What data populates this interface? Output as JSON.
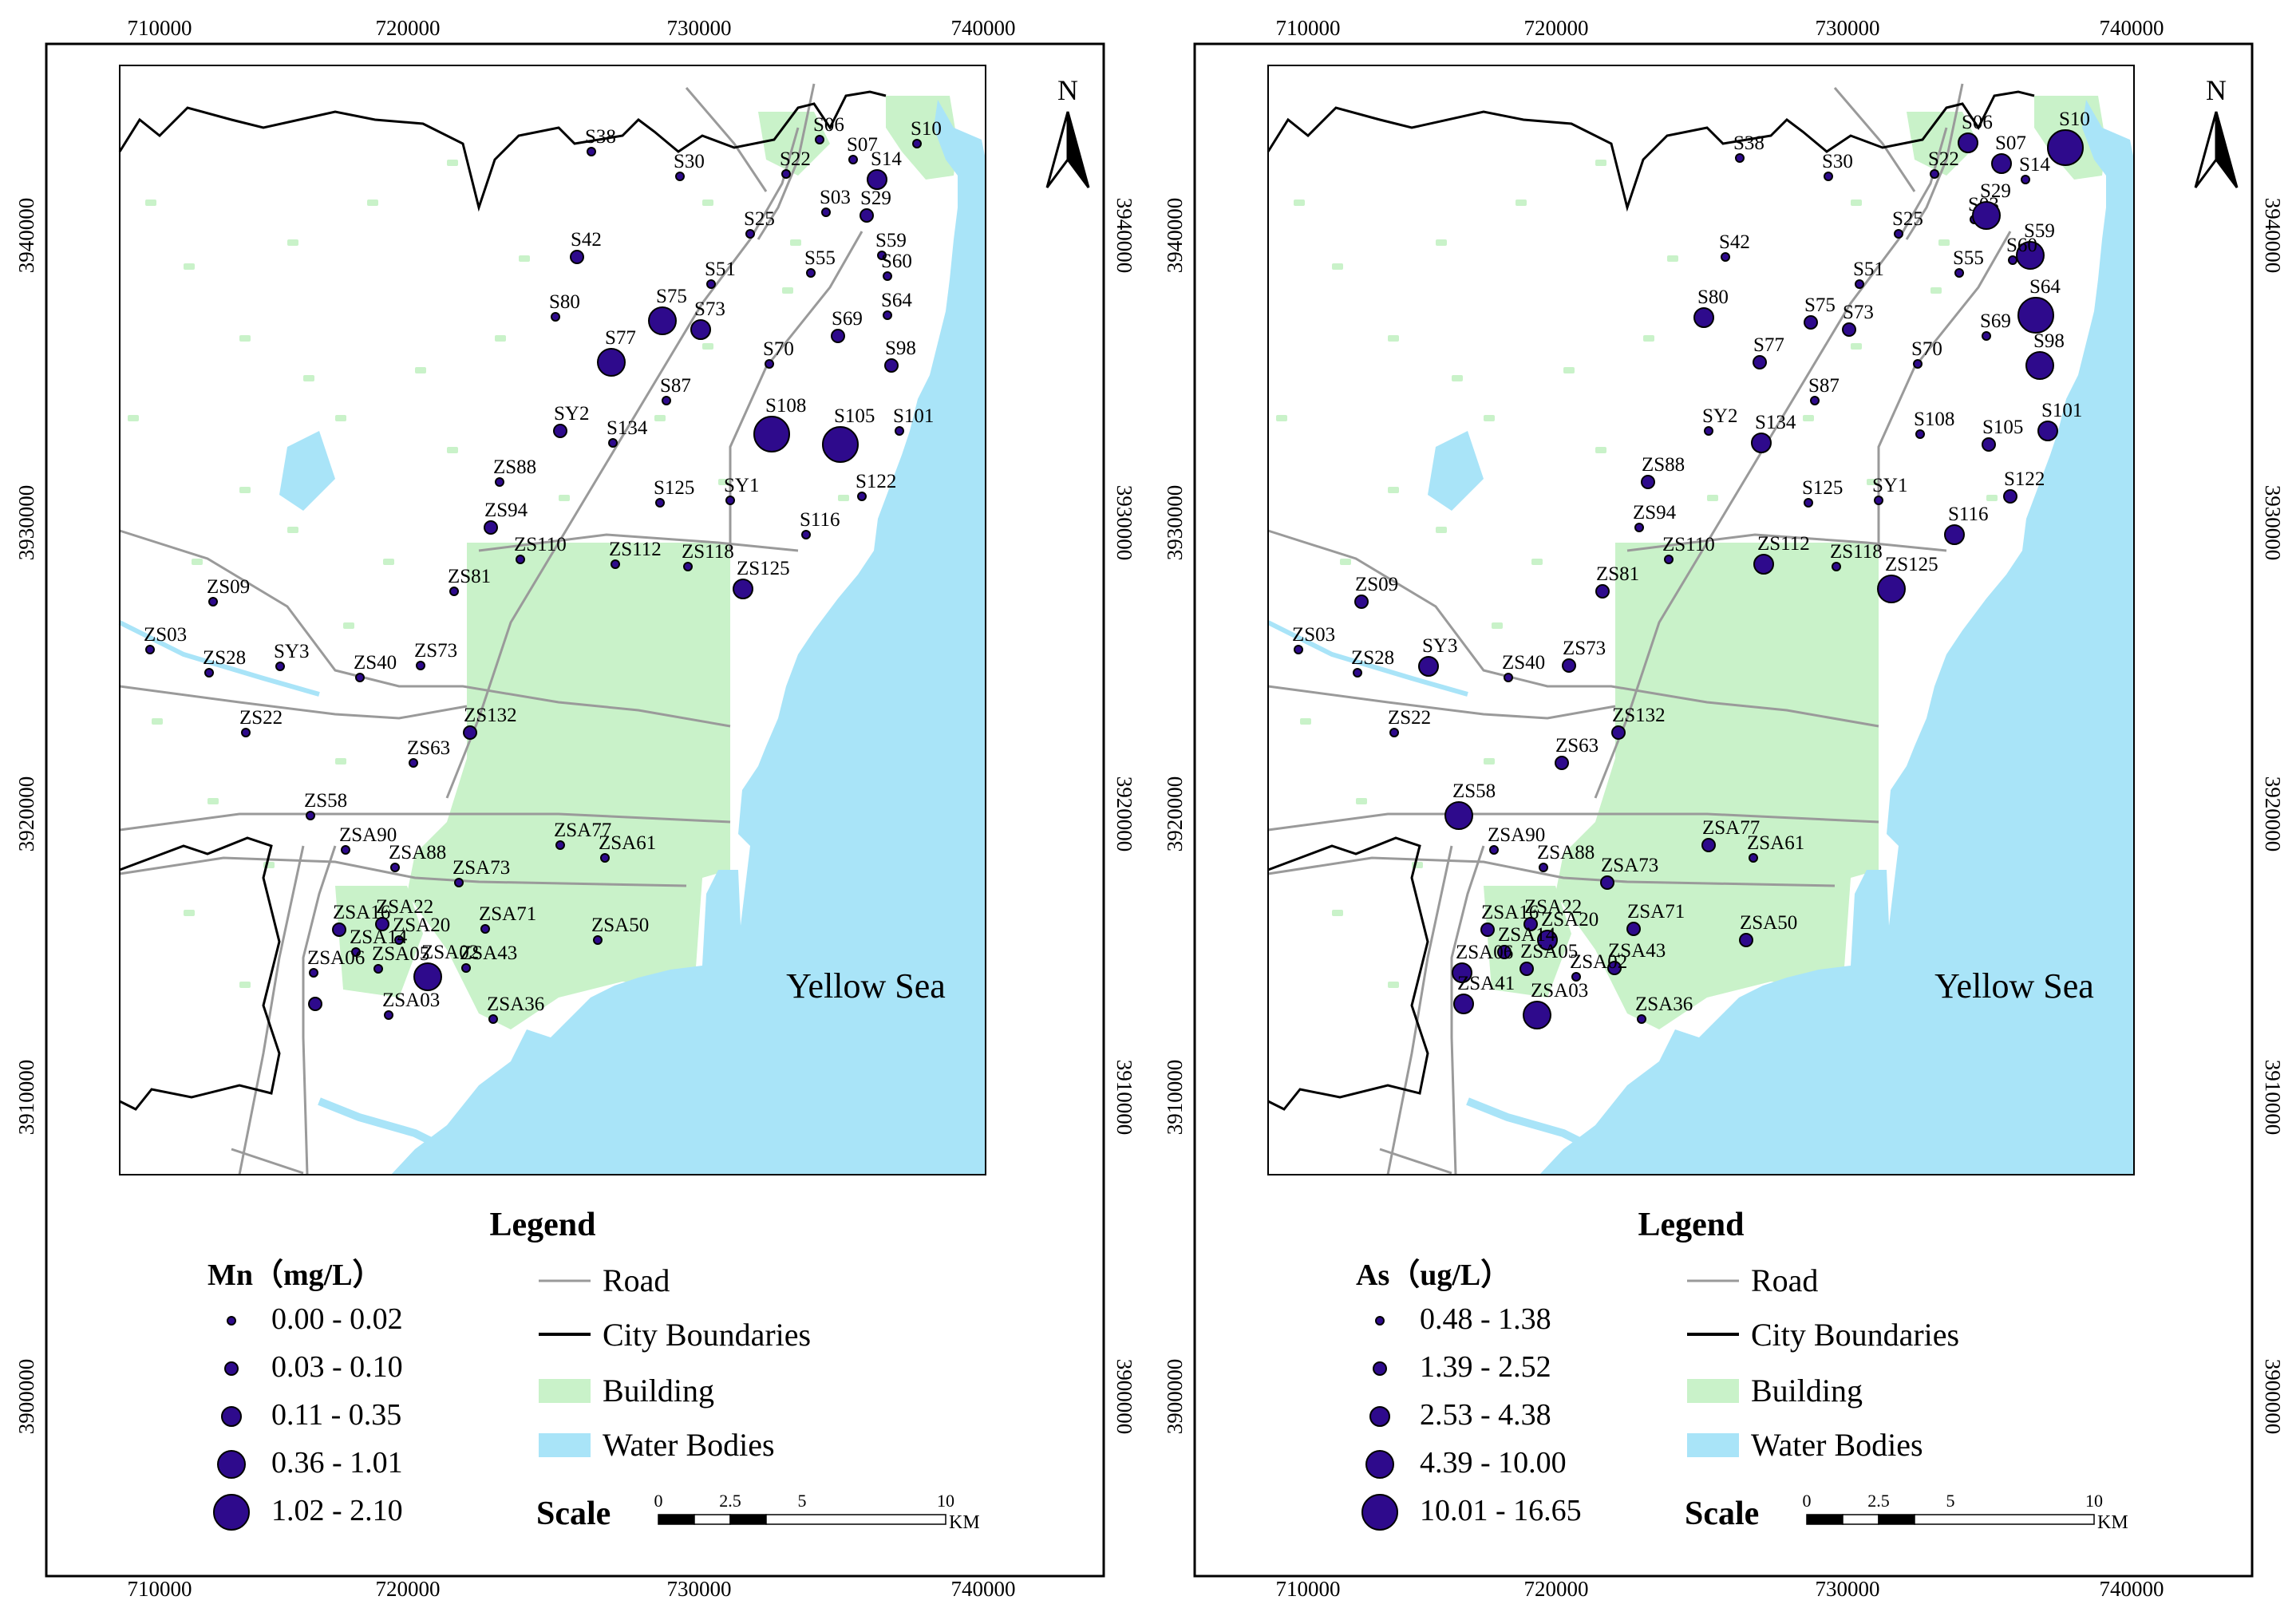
{
  "colors": {
    "land": "#ffffff",
    "water": "#a9e4f8",
    "building": "#c9f2c9",
    "road": "#9a9a9a",
    "boundary": "#000000",
    "marker_fill": "#2e0a8c",
    "marker_stroke": "#000000"
  },
  "axes": {
    "x_ticks": [
      "710000",
      "720000",
      "730000",
      "740000"
    ],
    "y_ticks": [
      "3910000",
      "3920000",
      "3930000",
      "3940000"
    ],
    "y_ticks_outer": [
      "3900000",
      "3910000",
      "3920000",
      "3930000",
      "3940000"
    ]
  },
  "sea_label": "Yellow Sea",
  "north_label": "N",
  "legend": {
    "title": "Legend",
    "road": "Road",
    "city_boundaries": "City Boundaries",
    "building": "Building",
    "water_bodies": "Water Bodies",
    "scale_title": "Scale",
    "scale_ticks": [
      "0",
      "2.5",
      "5",
      "10"
    ],
    "scale_unit": "KM"
  },
  "maps": [
    {
      "id": "mn",
      "variable_title": "Mn（mg/L）",
      "classes": [
        "0.00 - 0.02",
        "0.03 - 0.10",
        "0.11 - 0.35",
        "0.36 - 1.01",
        "1.02 - 2.10"
      ],
      "sites": [
        [
          "S38",
          741,
          190,
          0
        ],
        [
          "S30",
          852,
          221,
          0
        ],
        [
          "S22",
          985,
          218,
          0
        ],
        [
          "S06",
          1027,
          175,
          0
        ],
        [
          "S07",
          1069,
          200,
          0
        ],
        [
          "S10",
          1149,
          180,
          0
        ],
        [
          "S14",
          1099,
          225,
          2
        ],
        [
          "S03",
          1035,
          266,
          0
        ],
        [
          "S29",
          1086,
          270,
          1
        ],
        [
          "S25",
          940,
          293,
          0
        ],
        [
          "S42",
          723,
          322,
          1
        ],
        [
          "S55",
          1016,
          342,
          0
        ],
        [
          "S59",
          1105,
          320,
          0
        ],
        [
          "S60",
          1112,
          346,
          0
        ],
        [
          "S51",
          891,
          356,
          0
        ],
        [
          "S80",
          696,
          397,
          0
        ],
        [
          "S75",
          830,
          402,
          3
        ],
        [
          "S73",
          878,
          413,
          2
        ],
        [
          "S64",
          1112,
          395,
          0
        ],
        [
          "S69",
          1050,
          421,
          1
        ],
        [
          "S77",
          766,
          454,
          3
        ],
        [
          "S70",
          964,
          456,
          0
        ],
        [
          "S98",
          1117,
          458,
          1
        ],
        [
          "S87",
          835,
          502,
          0
        ],
        [
          "SY2",
          702,
          540,
          1
        ],
        [
          "S108",
          967,
          544,
          4
        ],
        [
          "S105",
          1053,
          557,
          4
        ],
        [
          "S101",
          1127,
          540,
          0
        ],
        [
          "S134",
          768,
          555,
          0
        ],
        [
          "ZS88",
          626,
          604,
          0
        ],
        [
          "S122",
          1080,
          622,
          0
        ],
        [
          "S125",
          827,
          630,
          0
        ],
        [
          "SY1",
          915,
          627,
          0
        ],
        [
          "ZS94",
          615,
          661,
          1
        ],
        [
          "S116",
          1010,
          670,
          0
        ],
        [
          "ZS110",
          652,
          701,
          0
        ],
        [
          "ZS112",
          771,
          707,
          0
        ],
        [
          "ZS118",
          862,
          710,
          0
        ],
        [
          "ZS81",
          569,
          741,
          0
        ],
        [
          "ZS125",
          931,
          738,
          2
        ],
        [
          "ZS09",
          267,
          754,
          0
        ],
        [
          "ZS03",
          188,
          814,
          0
        ],
        [
          "ZS28",
          262,
          843,
          0
        ],
        [
          "SY3",
          351,
          835,
          0
        ],
        [
          "ZS40",
          451,
          849,
          0
        ],
        [
          "ZS73",
          527,
          834,
          0
        ],
        [
          "ZS22",
          308,
          918,
          0
        ],
        [
          "ZS132",
          589,
          918,
          1
        ],
        [
          "ZS63",
          518,
          956,
          0
        ],
        [
          "ZS58",
          389,
          1022,
          0
        ],
        [
          "ZSA90",
          433,
          1065,
          0
        ],
        [
          "ZSA77",
          702,
          1059,
          0
        ],
        [
          "ZSA61",
          758,
          1075,
          0
        ],
        [
          "ZSA88",
          495,
          1087,
          0
        ],
        [
          "ZSA73",
          575,
          1106,
          0
        ],
        [
          "ZSA16",
          425,
          1165,
          1
        ],
        [
          "ZSA22",
          479,
          1158,
          1
        ],
        [
          "ZSA20",
          500,
          1178,
          0
        ],
        [
          "ZSA71",
          608,
          1164,
          0
        ],
        [
          "ZSA50",
          749,
          1178,
          0
        ],
        [
          "ZSA14",
          446,
          1193,
          0
        ],
        [
          "ZSA43",
          584,
          1213,
          0
        ],
        [
          "ZSA06",
          393,
          1219,
          0
        ],
        [
          "ZSA05",
          474,
          1214,
          0
        ],
        [
          "ZSA02",
          536,
          1224,
          3
        ],
        [
          "ZSA03",
          487,
          1272,
          0
        ],
        [
          "ZSA36",
          618,
          1277,
          0
        ],
        [
          "ZSA41",
          395,
          1258,
          1
        ]
      ],
      "labels_skip": [
        "ZSA41"
      ]
    },
    {
      "id": "as",
      "variable_title": "As（ug/L）",
      "classes": [
        "0.48 - 1.38",
        "1.39 - 2.52",
        "2.53 - 4.38",
        "4.39 - 10.00",
        "10.01 - 16.65"
      ],
      "sites": [
        [
          "S38",
          741,
          198,
          0
        ],
        [
          "S30",
          852,
          221,
          0
        ],
        [
          "S22",
          985,
          218,
          0
        ],
        [
          "S06",
          1027,
          179,
          2
        ],
        [
          "S07",
          1069,
          205,
          2
        ],
        [
          "S10",
          1149,
          185,
          4
        ],
        [
          "S14",
          1099,
          225,
          0
        ],
        [
          "S03",
          1035,
          275,
          0
        ],
        [
          "S29",
          1050,
          270,
          3
        ],
        [
          "S25",
          940,
          293,
          0
        ],
        [
          "S42",
          723,
          322,
          0
        ],
        [
          "S55",
          1016,
          342,
          0
        ],
        [
          "S59",
          1105,
          320,
          3
        ],
        [
          "S60",
          1083,
          326,
          0
        ],
        [
          "S64",
          1112,
          395,
          4
        ],
        [
          "S51",
          891,
          356,
          0
        ],
        [
          "S80",
          696,
          398,
          2
        ],
        [
          "S75",
          830,
          404,
          1
        ],
        [
          "S73",
          878,
          413,
          1
        ],
        [
          "S69",
          1050,
          421,
          0
        ],
        [
          "S77",
          766,
          454,
          1
        ],
        [
          "S70",
          964,
          456,
          0
        ],
        [
          "S98",
          1117,
          458,
          3
        ],
        [
          "S87",
          835,
          502,
          0
        ],
        [
          "SY2",
          702,
          540,
          0
        ],
        [
          "S108",
          967,
          544,
          0
        ],
        [
          "S105",
          1053,
          557,
          1
        ],
        [
          "S101",
          1127,
          540,
          2
        ],
        [
          "S134",
          768,
          555,
          2
        ],
        [
          "ZS88",
          626,
          604,
          1
        ],
        [
          "S122",
          1080,
          622,
          1
        ],
        [
          "S125",
          827,
          630,
          0
        ],
        [
          "SY1",
          915,
          627,
          0
        ],
        [
          "ZS94",
          615,
          661,
          0
        ],
        [
          "S116",
          1010,
          670,
          2
        ],
        [
          "ZS110",
          652,
          701,
          0
        ],
        [
          "ZS112",
          771,
          707,
          2
        ],
        [
          "ZS118",
          862,
          710,
          0
        ],
        [
          "ZS81",
          569,
          741,
          1
        ],
        [
          "ZS125",
          931,
          738,
          3
        ],
        [
          "ZS09",
          267,
          754,
          1
        ],
        [
          "ZS03",
          188,
          814,
          0
        ],
        [
          "ZS28",
          262,
          843,
          0
        ],
        [
          "SY3",
          351,
          835,
          2
        ],
        [
          "ZS40",
          451,
          849,
          0
        ],
        [
          "ZS73",
          527,
          834,
          1
        ],
        [
          "ZS22",
          308,
          918,
          0
        ],
        [
          "ZS132",
          589,
          918,
          1
        ],
        [
          "ZS63",
          518,
          956,
          1
        ],
        [
          "ZS58",
          389,
          1022,
          3
        ],
        [
          "ZSA90",
          433,
          1065,
          0
        ],
        [
          "ZSA77",
          702,
          1059,
          1
        ],
        [
          "ZSA61",
          758,
          1075,
          0
        ],
        [
          "ZSA88",
          495,
          1087,
          0
        ],
        [
          "ZSA73",
          575,
          1106,
          1
        ],
        [
          "ZSA16",
          425,
          1165,
          1
        ],
        [
          "ZSA22",
          479,
          1158,
          1
        ],
        [
          "ZSA20",
          500,
          1178,
          2
        ],
        [
          "ZSA71",
          608,
          1164,
          1
        ],
        [
          "ZSA50",
          749,
          1178,
          1
        ],
        [
          "ZSA14",
          446,
          1193,
          1
        ],
        [
          "ZSA43",
          584,
          1213,
          1
        ],
        [
          "ZSA06",
          393,
          1219,
          2
        ],
        [
          "ZSA05",
          474,
          1214,
          1
        ],
        [
          "ZSA02",
          536,
          1224,
          0
        ],
        [
          "ZSA03",
          487,
          1272,
          3
        ],
        [
          "ZSA36",
          618,
          1277,
          0
        ],
        [
          "ZSA41",
          395,
          1258,
          2
        ]
      ],
      "labels_skip": []
    }
  ]
}
